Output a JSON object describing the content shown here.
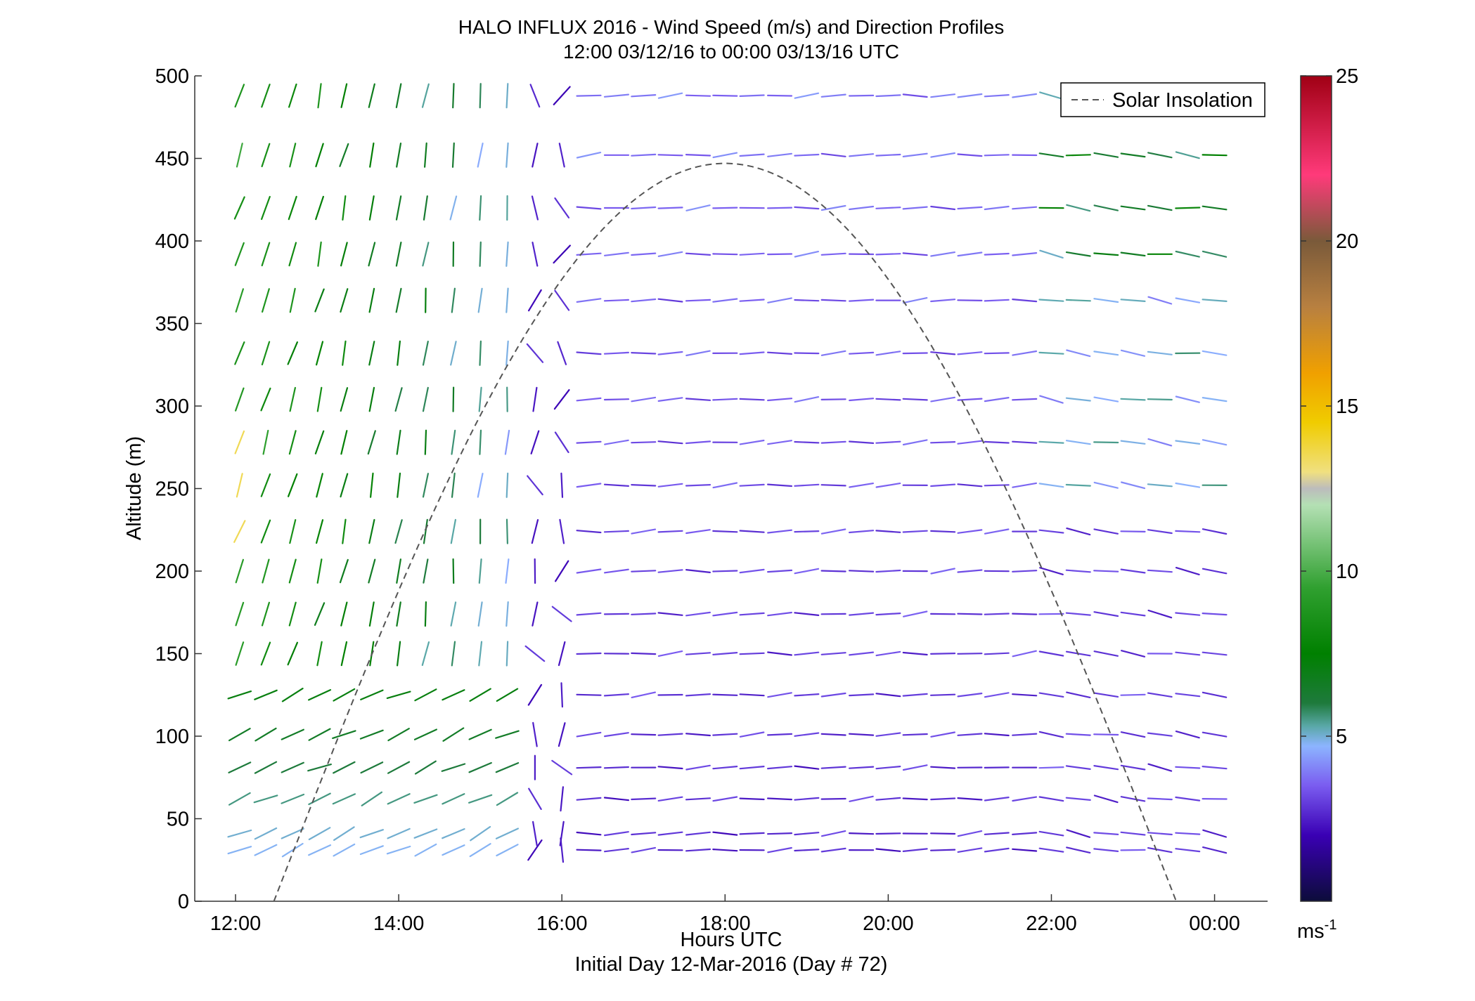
{
  "chart_data": {
    "type": "wind-profile",
    "title": "HALO INFLUX 2016 - Wind Speed (m/s) and Direction Profiles",
    "subtitle": "12:00 03/12/16 to 00:00 03/13/16  UTC",
    "xlabel": "Hours UTC",
    "xlabel_sub": "Initial Day 12-Mar-2016 (Day # 72)",
    "ylabel": "Altitude (m)",
    "x_ticks": [
      12,
      14,
      16,
      18,
      20,
      22,
      24
    ],
    "x_tick_labels": [
      "12:00",
      "14:00",
      "16:00",
      "18:00",
      "20:00",
      "22:00",
      "00:00"
    ],
    "xlim": [
      11.5,
      24.65
    ],
    "ylim": [
      0,
      500
    ],
    "y_ticks": [
      0,
      50,
      100,
      150,
      200,
      250,
      300,
      350,
      400,
      450,
      500
    ],
    "y_tick_labels": [
      "0",
      "50",
      "100",
      "150",
      "200",
      "250",
      "300",
      "350",
      "400",
      "450",
      "500"
    ],
    "legend": {
      "label": "Solar Insolation",
      "position": "top-right",
      "style": "dashed"
    },
    "colorbar": {
      "range": [
        0,
        25
      ],
      "ticks": [
        5,
        10,
        15,
        20,
        25
      ],
      "tick_labels": [
        "5",
        "10",
        "15",
        "20",
        "25"
      ],
      "unit": "ms",
      "unit_exp": "-1",
      "stops": [
        {
          "v": 0,
          "c": "#0c0c3a"
        },
        {
          "v": 2,
          "c": "#3a00b4"
        },
        {
          "v": 3.5,
          "c": "#7a5cf0"
        },
        {
          "v": 4.7,
          "c": "#8cb4ff"
        },
        {
          "v": 5.3,
          "c": "#5aa8a8"
        },
        {
          "v": 6,
          "c": "#1e7a3c"
        },
        {
          "v": 7.5,
          "c": "#008000"
        },
        {
          "v": 9.5,
          "c": "#30a030"
        },
        {
          "v": 12,
          "c": "#b4e0b4"
        },
        {
          "v": 12.5,
          "c": "#bcbcbc"
        },
        {
          "v": 13,
          "c": "#f0e080"
        },
        {
          "v": 14.5,
          "c": "#f0cc00"
        },
        {
          "v": 16,
          "c": "#f0a000"
        },
        {
          "v": 18,
          "c": "#b88040"
        },
        {
          "v": 20,
          "c": "#7a5a3a"
        },
        {
          "v": 22,
          "c": "#ff3a7a"
        },
        {
          "v": 25,
          "c": "#a00014"
        }
      ]
    },
    "solar_insolation": {
      "rise_hour": 12.47,
      "set_hour": 23.53,
      "peak_hour": 18.0,
      "peak_value": 447
    },
    "altitudes": [
      31,
      41,
      62,
      81,
      101,
      125,
      150,
      174,
      200,
      224,
      252,
      278,
      304,
      332,
      364,
      392,
      420,
      452,
      488
    ],
    "profiles": [
      {
        "t": 12.05,
        "profile": "early"
      },
      {
        "t": 12.37,
        "profile": "early"
      },
      {
        "t": 12.7,
        "profile": "early"
      },
      {
        "t": 13.03,
        "profile": "early"
      },
      {
        "t": 13.33,
        "profile": "early"
      },
      {
        "t": 13.67,
        "profile": "early"
      },
      {
        "t": 14.0,
        "profile": "early"
      },
      {
        "t": 14.33,
        "profile": "early"
      },
      {
        "t": 14.67,
        "profile": "early"
      },
      {
        "t": 15.0,
        "profile": "early"
      },
      {
        "t": 15.33,
        "profile": "early"
      },
      {
        "t": 15.67,
        "profile": "transition"
      },
      {
        "t": 16.0,
        "profile": "transition"
      },
      {
        "t": 16.33,
        "profile": "late"
      },
      {
        "t": 16.67,
        "profile": "late"
      },
      {
        "t": 17.0,
        "profile": "late"
      },
      {
        "t": 17.33,
        "profile": "late"
      },
      {
        "t": 17.67,
        "profile": "late"
      },
      {
        "t": 18.0,
        "profile": "late"
      },
      {
        "t": 18.33,
        "profile": "late"
      },
      {
        "t": 18.67,
        "profile": "late"
      },
      {
        "t": 19.0,
        "profile": "late"
      },
      {
        "t": 19.33,
        "profile": "late"
      },
      {
        "t": 19.67,
        "profile": "late"
      },
      {
        "t": 20.0,
        "profile": "late"
      },
      {
        "t": 20.33,
        "profile": "late"
      },
      {
        "t": 20.67,
        "profile": "late"
      },
      {
        "t": 21.0,
        "profile": "late"
      },
      {
        "t": 21.33,
        "profile": "late"
      },
      {
        "t": 21.67,
        "profile": "late"
      },
      {
        "t": 22.0,
        "profile": "evening"
      },
      {
        "t": 22.33,
        "profile": "evening"
      },
      {
        "t": 22.67,
        "profile": "evening"
      },
      {
        "t": 23.0,
        "profile": "evening"
      },
      {
        "t": 23.33,
        "profile": "evening"
      },
      {
        "t": 23.67,
        "profile": "evening"
      },
      {
        "t": 24.0,
        "profile": "evening"
      }
    ]
  }
}
